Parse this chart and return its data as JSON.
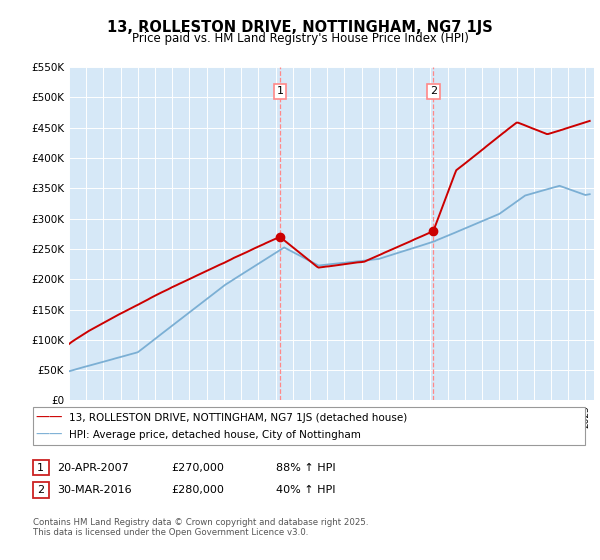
{
  "title": "13, ROLLESTON DRIVE, NOTTINGHAM, NG7 1JS",
  "subtitle": "Price paid vs. HM Land Registry's House Price Index (HPI)",
  "legend_property": "13, ROLLESTON DRIVE, NOTTINGHAM, NG7 1JS (detached house)",
  "legend_hpi": "HPI: Average price, detached house, City of Nottingham",
  "sale1_date": "20-APR-2007",
  "sale1_price": 270000,
  "sale1_label": "1",
  "sale1_hpi_pct": "88% ↑ HPI",
  "sale2_date": "30-MAR-2016",
  "sale2_price": 280000,
  "sale2_label": "2",
  "sale2_hpi_pct": "40% ↑ HPI",
  "footer": "Contains HM Land Registry data © Crown copyright and database right 2025.\nThis data is licensed under the Open Government Licence v3.0.",
  "property_color": "#cc0000",
  "hpi_color": "#7bafd4",
  "vline_color": "#ff8888",
  "background_color": "#d6e8f7",
  "ylim": [
    0,
    550000
  ],
  "yticks": [
    0,
    50000,
    100000,
    150000,
    200000,
    250000,
    300000,
    350000,
    400000,
    450000,
    500000,
    550000
  ],
  "xlim_start": 1995.0,
  "xlim_end": 2025.5
}
